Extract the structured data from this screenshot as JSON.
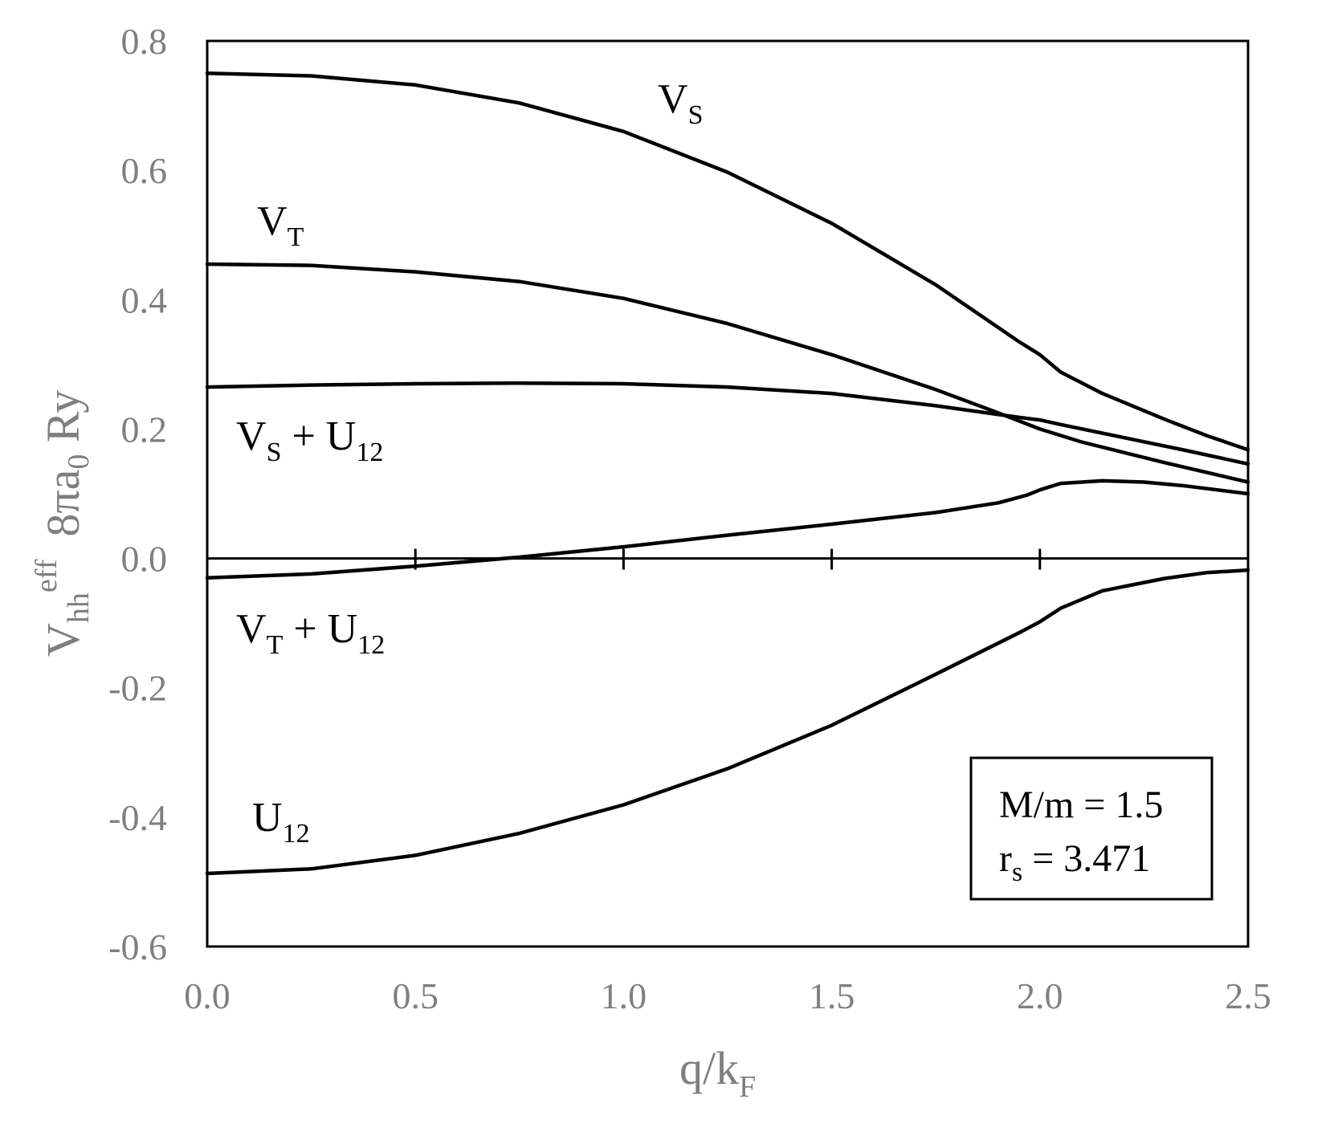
{
  "chart_data": {
    "type": "line",
    "xlabel": {
      "main": "q/k",
      "sub": "F"
    },
    "ylabel": {
      "v": "V",
      "v_sub": "hh",
      "v_sup": "eff",
      "rest": "8πa",
      "rest_sub": "0",
      "rest_tail": " Ry"
    },
    "xlim": [
      0,
      2.5
    ],
    "ylim": [
      -0.6,
      0.8
    ],
    "xticks": [
      "0.0",
      "0.5",
      "1.0",
      "1.5",
      "2.0",
      "2.5"
    ],
    "yticks": [
      "-0.6",
      "-0.4",
      "-0.2",
      "0.0",
      "0.2",
      "0.4",
      "0.6",
      "0.8"
    ],
    "grid": false,
    "series": [
      {
        "name": {
          "main": "V",
          "sub": "S",
          "tail": ""
        },
        "x": [
          0,
          0.25,
          0.5,
          0.75,
          1.0,
          1.25,
          1.5,
          1.75,
          1.95,
          2.0,
          2.05,
          2.15,
          2.3,
          2.4,
          2.5
        ],
        "y": [
          0.75,
          0.746,
          0.732,
          0.704,
          0.66,
          0.597,
          0.518,
          0.423,
          0.335,
          0.315,
          0.288,
          0.255,
          0.215,
          0.19,
          0.168
        ]
      },
      {
        "name": {
          "main": "V",
          "sub": "T",
          "tail": ""
        },
        "x": [
          0,
          0.25,
          0.5,
          0.75,
          1.0,
          1.25,
          1.5,
          1.75,
          1.9,
          2.0,
          2.1,
          2.3,
          2.5
        ],
        "y": [
          0.455,
          0.453,
          0.443,
          0.428,
          0.402,
          0.363,
          0.315,
          0.261,
          0.225,
          0.2,
          0.18,
          0.148,
          0.118
        ]
      },
      {
        "name": {
          "main": "V",
          "sub": "S",
          "tail": " + U",
          "sub2": "12"
        },
        "x": [
          0,
          0.25,
          0.5,
          0.75,
          1.0,
          1.25,
          1.5,
          1.75,
          1.95,
          2.0,
          2.05,
          2.2,
          2.35,
          2.5
        ],
        "y": [
          0.265,
          0.268,
          0.27,
          0.271,
          0.27,
          0.265,
          0.255,
          0.236,
          0.218,
          0.214,
          0.207,
          0.187,
          0.167,
          0.146
        ]
      },
      {
        "name": {
          "main": "V",
          "sub": "T",
          "tail": " + U",
          "sub2": "12"
        },
        "x": [
          0,
          0.25,
          0.5,
          0.75,
          1.0,
          1.25,
          1.5,
          1.75,
          1.9,
          1.97,
          2.0,
          2.05,
          2.15,
          2.25,
          2.35,
          2.5
        ],
        "y": [
          -0.03,
          -0.024,
          -0.012,
          0.002,
          0.018,
          0.036,
          0.053,
          0.071,
          0.086,
          0.098,
          0.106,
          0.116,
          0.12,
          0.118,
          0.112,
          0.1
        ]
      },
      {
        "name": {
          "main": "U",
          "sub": "12",
          "tail": ""
        },
        "x": [
          0,
          0.25,
          0.5,
          0.75,
          1.0,
          1.25,
          1.5,
          1.75,
          1.95,
          2.0,
          2.05,
          2.15,
          2.3,
          2.4,
          2.5
        ],
        "y": [
          -0.487,
          -0.48,
          -0.459,
          -0.425,
          -0.381,
          -0.325,
          -0.258,
          -0.179,
          -0.115,
          -0.098,
          -0.077,
          -0.05,
          -0.031,
          -0.022,
          -0.018
        ]
      }
    ],
    "annotation": {
      "line1": "M/m = 1.5",
      "line2_main": "r",
      "line2_sub": "s",
      "line2_tail": " = 3.471"
    }
  }
}
